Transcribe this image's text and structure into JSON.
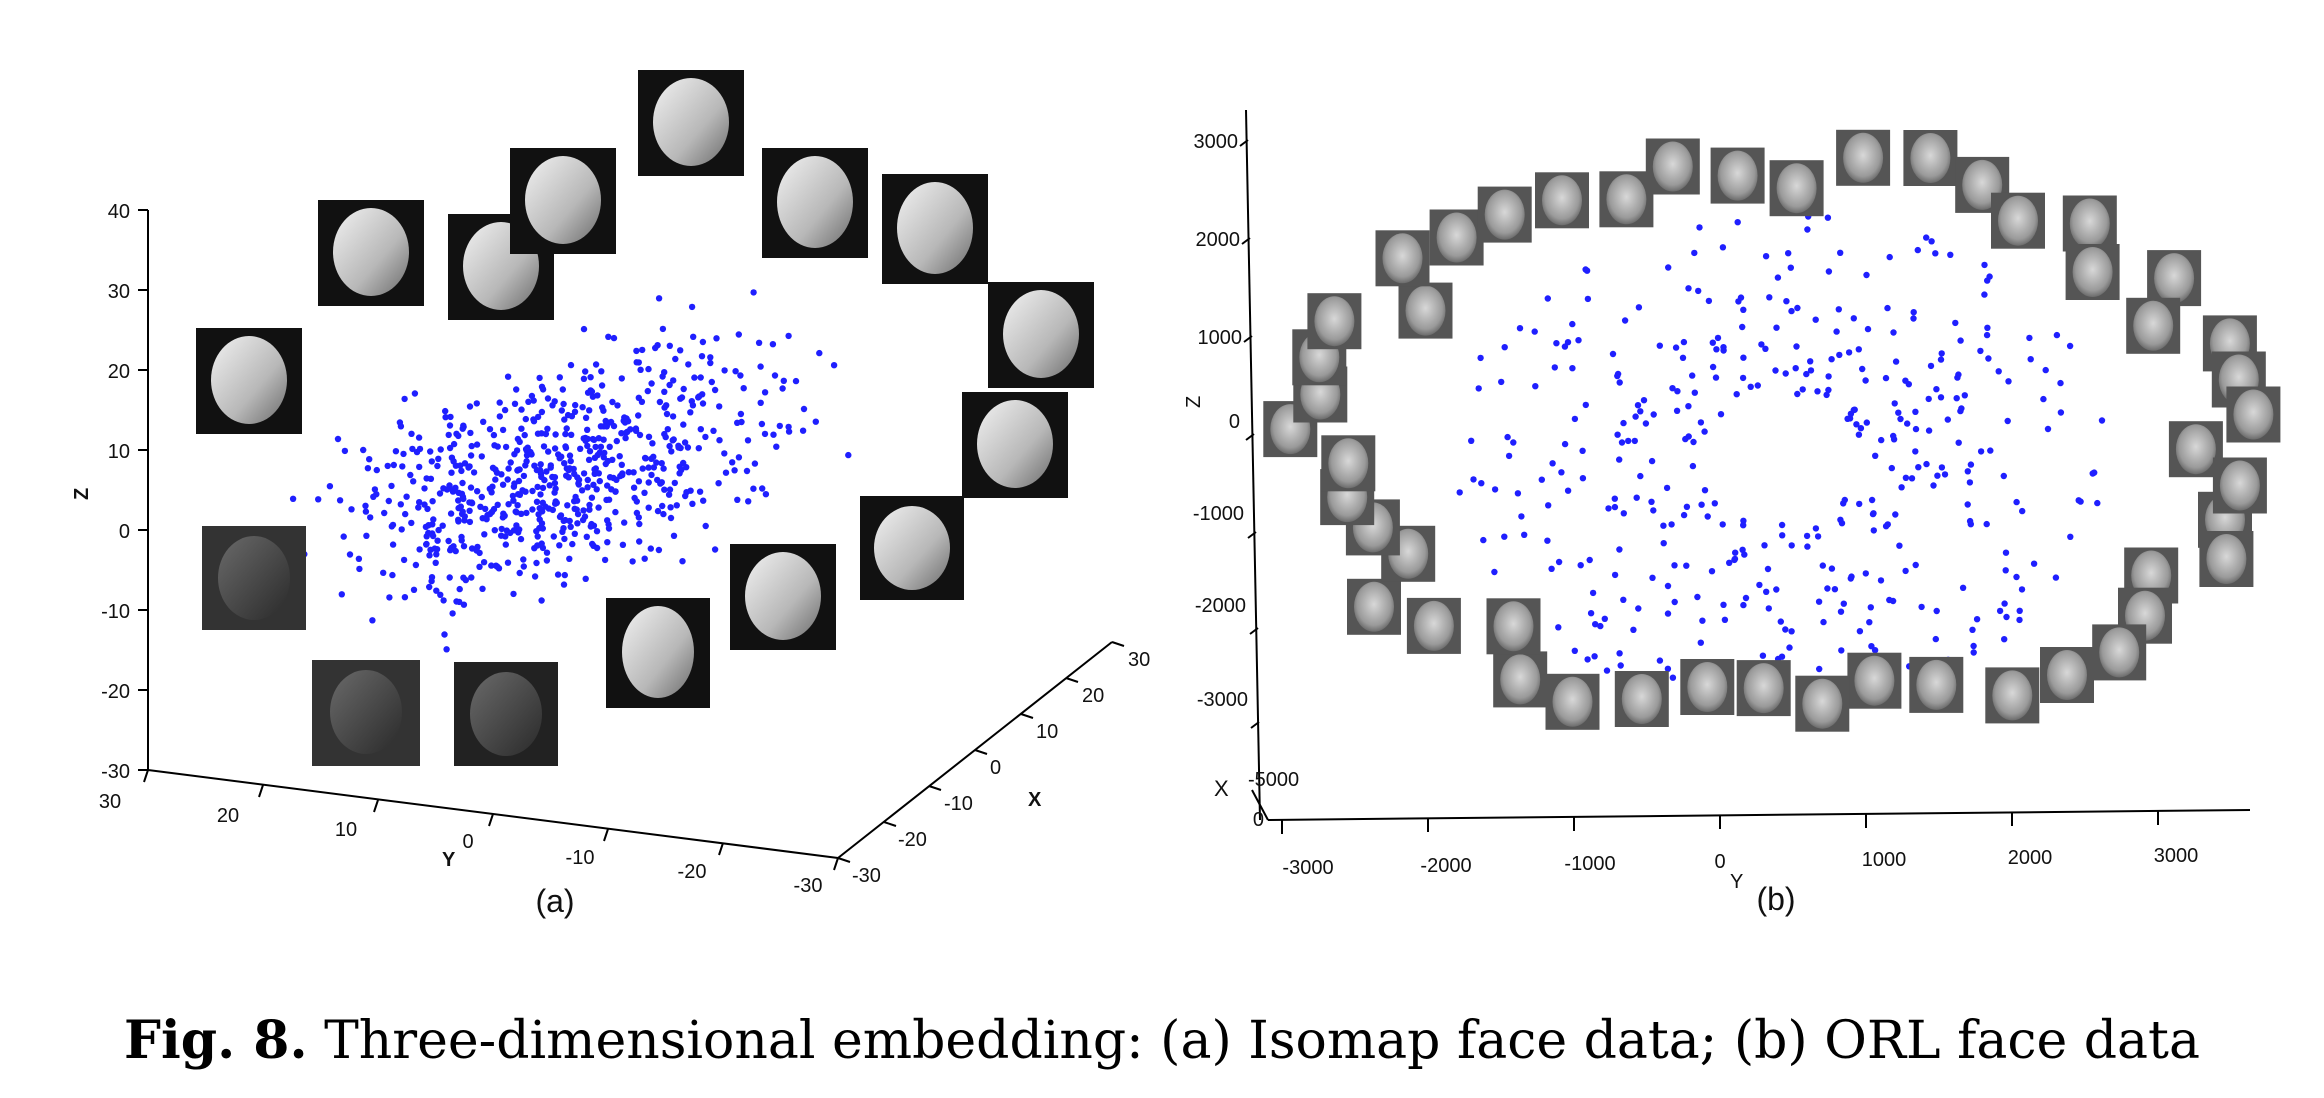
{
  "caption": {
    "label": "Fig. 8.",
    "text": "Three-dimensional embedding: (a) Isomap face data; (b) ORL face data"
  },
  "colors": {
    "points": "#1f1fff",
    "axis": "#000000"
  },
  "chart_data": [
    {
      "type": "scatter",
      "subtitle": "(a)",
      "zlabel": "Z",
      "ylabel": "Y",
      "xlabel": "X",
      "z_ticks": [
        "40",
        "30",
        "20",
        "10",
        "0",
        "-10",
        "-20",
        "-30"
      ],
      "y_ticks": [
        "30",
        "20",
        "10",
        "0",
        "-10",
        "-20",
        "-30"
      ],
      "x_ticks": [
        "30",
        "20",
        "10",
        "0",
        "-10",
        "-20",
        "-30"
      ],
      "zlim": [
        -30,
        40
      ],
      "ylim": [
        -30,
        30
      ],
      "xlim": [
        -30,
        30
      ],
      "grid": false,
      "point_count": 700,
      "face_thumbnails": 14
    },
    {
      "type": "scatter",
      "subtitle": "(b)",
      "zlabel": "Z",
      "ylabel": "Y",
      "xlabel": "X",
      "z_ticks": [
        "3000",
        "2000",
        "1000",
        "0",
        "-1000",
        "-2000",
        "-3000"
      ],
      "y_ticks": [
        "-3000",
        "-2000",
        "-1000",
        "0",
        "1000",
        "2000",
        "3000"
      ],
      "x_ticks": [
        "-5000",
        "0"
      ],
      "zlim": [
        -3000,
        3000
      ],
      "ylim": [
        -3000,
        3000
      ],
      "grid": false,
      "point_count": 400,
      "face_thumbnails": 48
    }
  ]
}
